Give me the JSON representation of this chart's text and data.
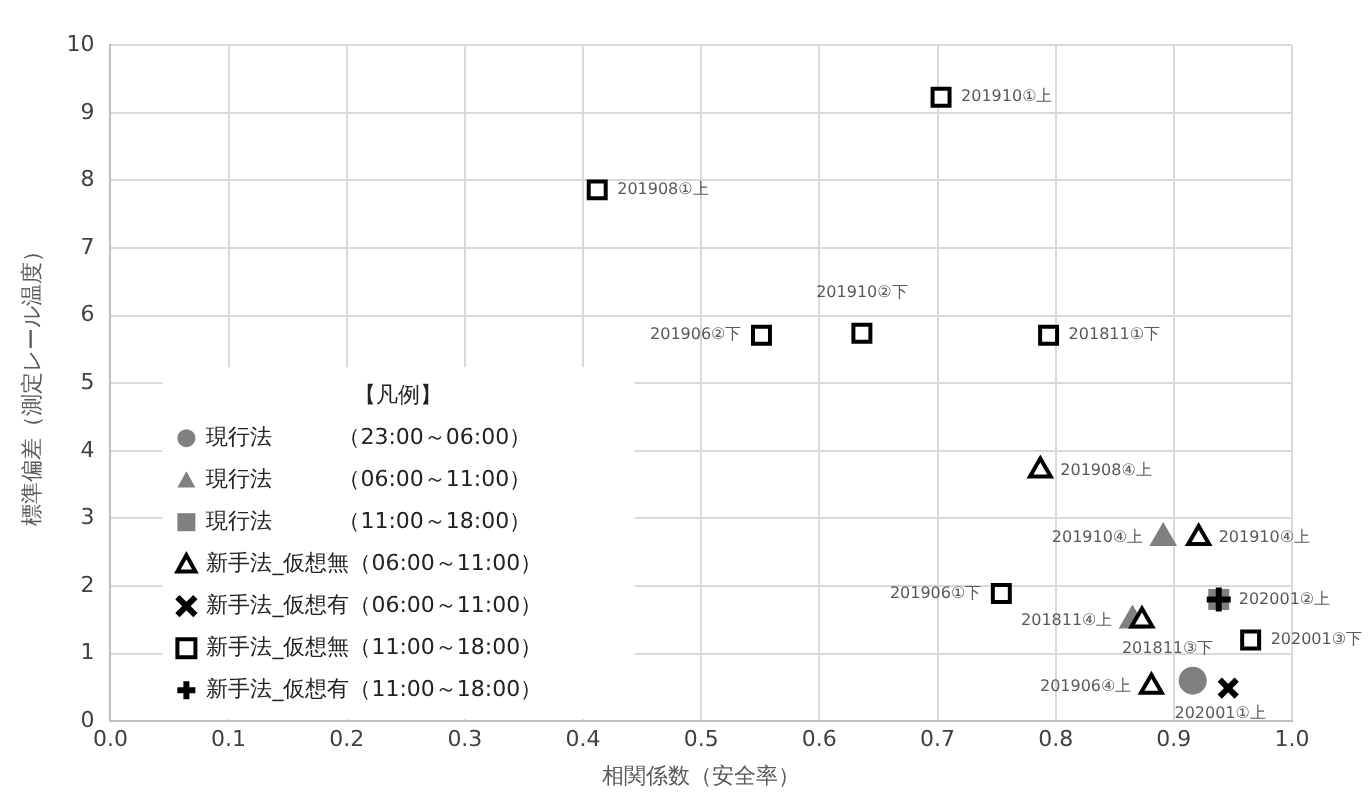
{
  "chart_data": {
    "type": "scatter",
    "xlabel": "相関係数（安全率）",
    "ylabel": "標準偏差（測定レール温度）",
    "legend_title": "【凡例】",
    "legend": "bottom left",
    "grid": true,
    "xlim": [
      0,
      1
    ],
    "xticks": [
      {
        "value": 0,
        "label": "0.0"
      },
      {
        "value": 0.1,
        "label": "0.1"
      },
      {
        "value": 0.2,
        "label": "0.2"
      },
      {
        "value": 0.3,
        "label": "0.3"
      },
      {
        "value": 0.4,
        "label": "0.4"
      },
      {
        "value": 0.5,
        "label": "0.5"
      },
      {
        "value": 0.6,
        "label": "0.6"
      },
      {
        "value": 0.7,
        "label": "0.7"
      },
      {
        "value": 0.8,
        "label": "0.8"
      },
      {
        "value": 0.9,
        "label": "0.9"
      },
      {
        "value": 1,
        "label": "1.0"
      }
    ],
    "ylim": [
      0,
      10
    ],
    "yticks": [
      0,
      1,
      2,
      3,
      4,
      5,
      6,
      7,
      8,
      9,
      10
    ],
    "series": [
      {
        "name": "現行法　　　（23:00～06:00）",
        "color": "#808080",
        "marker": "circle",
        "x": [
          0.916
        ],
        "values": [
          0.6
        ]
      },
      {
        "name": "現行法　　　（06:00～11:00）",
        "color": "#808080",
        "marker": "triangle",
        "x": [
          0.891,
          0.865
        ],
        "values": [
          2.71,
          1.49
        ]
      },
      {
        "name": "現行法　　　（11:00～18:00）",
        "color": "#808080",
        "marker": "square",
        "x": [
          0.938
        ],
        "values": [
          1.8
        ]
      },
      {
        "name": "新手法_仮想無（06:00～11:00）",
        "color": "#000000",
        "marker": "triangle",
        "x": [
          0.787,
          0.921,
          0.873,
          0.881
        ],
        "values": [
          3.71,
          2.71,
          1.49,
          0.51
        ]
      },
      {
        "name": "新手法_仮想有（06:00～11:00）",
        "color": "#000000",
        "marker": "x",
        "x": [
          0.946
        ],
        "values": [
          0.49
        ]
      },
      {
        "name": "新手法_仮想無（11:00～18:00）",
        "color": "#000000",
        "marker": "square",
        "x": [
          0.703,
          0.412,
          0.551,
          0.636,
          0.794,
          0.754,
          0.965
        ],
        "values": [
          9.23,
          7.86,
          5.71,
          5.74,
          5.71,
          1.89,
          1.2
        ]
      },
      {
        "name": "新手法_仮想有（11:00～18:00）",
        "color": "#000000",
        "marker": "cross",
        "x": [
          0.938
        ],
        "values": [
          1.8
        ]
      }
    ],
    "annotations": [
      {
        "text": "201910①上",
        "x": 0.703,
        "y": 9.23
      },
      {
        "text": "201908①上",
        "x": 0.412,
        "y": 7.86
      },
      {
        "text": "201906②下",
        "x": 0.551,
        "y": 5.71
      },
      {
        "text": "201910②下",
        "x": 0.636,
        "y": 5.74
      },
      {
        "text": "201811①下",
        "x": 0.794,
        "y": 5.71
      },
      {
        "text": "201908④上",
        "x": 0.787,
        "y": 3.71
      },
      {
        "text": "201910④上",
        "x": 0.891,
        "y": 2.71
      },
      {
        "text": "201910④上",
        "x": 0.921,
        "y": 2.71
      },
      {
        "text": "201906①下",
        "x": 0.754,
        "y": 1.89
      },
      {
        "text": "202001②上",
        "x": 0.938,
        "y": 1.8
      },
      {
        "text": "201811④上",
        "x": 0.865,
        "y": 1.49
      },
      {
        "text": "201811③下",
        "x": 0.873,
        "y": 1.49
      },
      {
        "text": "202001③下",
        "x": 0.965,
        "y": 1.2
      },
      {
        "text": "201906④上",
        "x": 0.881,
        "y": 0.51
      },
      {
        "text": "202001①上",
        "x": 0.946,
        "y": 0.49
      }
    ]
  }
}
